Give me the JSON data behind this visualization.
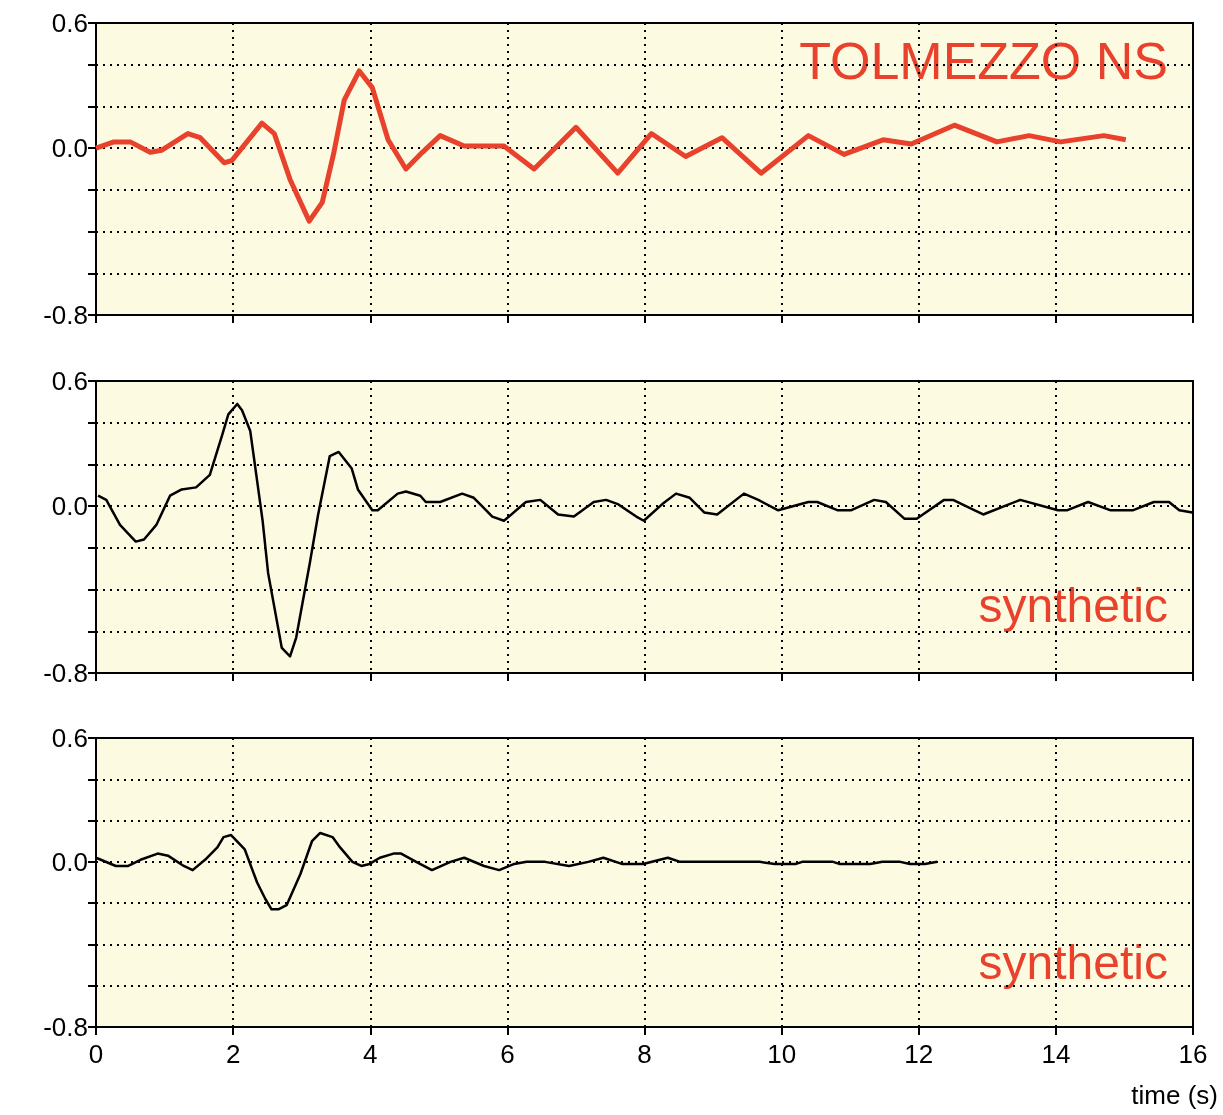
{
  "chart_data": [
    {
      "type": "line",
      "tick_labels": "y",
      "grid": true,
      "xlim": [
        0,
        16
      ],
      "xticks": [
        0,
        2,
        4,
        6,
        8,
        10,
        12,
        14,
        16
      ],
      "ylim": [
        -0.8,
        0.6
      ],
      "yticks": [
        0.6,
        {
          "value": 0.4,
          "label": null
        },
        {
          "value": 0.2,
          "label": null
        },
        {
          "value": 0,
          "label": "0.0"
        },
        {
          "value": -0.2,
          "label": null
        },
        {
          "value": -0.4,
          "label": null
        },
        {
          "value": -0.6,
          "label": null
        },
        -0.8
      ],
      "annotations": [
        "TOLMEZZO NS"
      ],
      "series": [
        {
          "color": "#e8412c",
          "x": [
            0,
            0.26,
            0.5,
            0.79,
            0.96,
            1.34,
            1.52,
            1.87,
            1.98,
            2.42,
            2.6,
            2.83,
            3.11,
            3.3,
            3.47,
            3.62,
            3.84,
            4.03,
            4.26,
            4.52,
            4.76,
            5.02,
            5.37,
            5.95,
            6.39,
            7.0,
            7.61,
            8.1,
            8.6,
            9.13,
            9.7,
            10.39,
            10.91,
            11.48,
            11.89,
            12.52,
            13.14,
            13.61,
            14.07,
            14.7,
            15.02
          ],
          "values": [
            0,
            0.03,
            0.03,
            -0.02,
            -0.01,
            0.07,
            0.05,
            -0.07,
            -0.06,
            0.12,
            0.07,
            -0.15,
            -0.35,
            -0.26,
            -0.02,
            0.23,
            0.37,
            0.29,
            0.04,
            -0.1,
            -0.02,
            0.06,
            0.01,
            0.01,
            -0.1,
            0.1,
            -0.12,
            0.07,
            -0.04,
            0.05,
            -0.12,
            0.06,
            -0.03,
            0.04,
            0.02,
            0.11,
            0.03,
            0.06,
            0.03,
            0.06,
            0.04
          ]
        }
      ]
    },
    {
      "type": "line",
      "tick_labels": "y",
      "grid": true,
      "xlim": [
        0,
        16
      ],
      "xticks": [
        0,
        2,
        4,
        6,
        8,
        10,
        12,
        14,
        16
      ],
      "ylim": [
        -0.8,
        0.6
      ],
      "yticks": [
        0.6,
        {
          "value": 0.4,
          "label": null
        },
        {
          "value": 0.2,
          "label": null
        },
        {
          "value": 0,
          "label": "0.0"
        },
        {
          "value": -0.2,
          "label": null
        },
        {
          "value": -0.4,
          "label": null
        },
        {
          "value": -0.6,
          "label": null
        },
        -0.8
      ],
      "annotations": [
        "synthetic"
      ],
      "series": [
        {
          "color": "#000000",
          "x": [
            0.03,
            0.15,
            0.35,
            0.58,
            0.7,
            0.88,
            1.08,
            1.25,
            1.46,
            1.66,
            1.84,
            1.93,
            2.06,
            2.13,
            2.25,
            2.43,
            2.51,
            2.71,
            2.83,
            2.92,
            3.12,
            3.24,
            3.41,
            3.54,
            3.73,
            3.82,
            4.03,
            4.11,
            4.4,
            4.52,
            4.73,
            4.81,
            5.02,
            5.34,
            5.51,
            5.78,
            5.95,
            6.27,
            6.48,
            6.74,
            6.97,
            7.26,
            7.44,
            7.61,
            7.88,
            7.99,
            8.26,
            8.46,
            8.66,
            8.87,
            9.06,
            9.45,
            9.66,
            9.95,
            10.39,
            10.52,
            10.82,
            11.01,
            11.35,
            11.52,
            11.79,
            11.97,
            12.37,
            12.5,
            12.94,
            13.48,
            14.03,
            14.16,
            14.47,
            14.8,
            15.12,
            15.43,
            15.65,
            15.8,
            15.99
          ],
          "values": [
            0.05,
            0.03,
            -0.09,
            -0.17,
            -0.16,
            -0.09,
            0.05,
            0.08,
            0.09,
            0.15,
            0.34,
            0.44,
            0.49,
            0.46,
            0.36,
            -0.07,
            -0.32,
            -0.68,
            -0.72,
            -0.63,
            -0.27,
            -0.04,
            0.24,
            0.26,
            0.18,
            0.08,
            -0.02,
            -0.02,
            0.06,
            0.07,
            0.05,
            0.02,
            0.02,
            0.06,
            0.04,
            -0.05,
            -0.07,
            0.02,
            0.03,
            -0.04,
            -0.05,
            0.02,
            0.03,
            0.01,
            -0.05,
            -0.07,
            0.01,
            0.06,
            0.04,
            -0.03,
            -0.04,
            0.06,
            0.03,
            -0.02,
            0.02,
            0.02,
            -0.02,
            -0.02,
            0.03,
            0.02,
            -0.06,
            -0.06,
            0.03,
            0.03,
            -0.04,
            0.03,
            -0.02,
            -0.02,
            0.02,
            -0.02,
            -0.02,
            0.02,
            0.02,
            -0.02,
            -0.03
          ]
        }
      ]
    },
    {
      "type": "line",
      "grid": true,
      "xlabel": "time (s)",
      "xlim": [
        0,
        16
      ],
      "xticks": [
        0,
        2,
        4,
        6,
        8,
        10,
        12,
        14,
        16
      ],
      "ylim": [
        -0.8,
        0.6
      ],
      "yticks": [
        0.6,
        {
          "value": 0.4,
          "label": null
        },
        {
          "value": 0.2,
          "label": null
        },
        {
          "value": 0,
          "label": "0.0"
        },
        {
          "value": -0.2,
          "label": null
        },
        {
          "value": -0.4,
          "label": null
        },
        {
          "value": -0.6,
          "label": null
        },
        -0.8
      ],
      "annotations": [
        "synthetic"
      ],
      "series": [
        {
          "color": "#000000",
          "x": [
            0,
            0.29,
            0.47,
            0.65,
            0.9,
            1.05,
            1.28,
            1.41,
            1.59,
            1.77,
            1.86,
            1.97,
            2.17,
            2.35,
            2.47,
            2.56,
            2.66,
            2.78,
            2.98,
            3.15,
            3.27,
            3.45,
            3.56,
            3.74,
            3.87,
            3.99,
            4.14,
            4.34,
            4.45,
            4.67,
            4.9,
            5.17,
            5.37,
            5.66,
            5.88,
            6.1,
            6.28,
            6.55,
            6.9,
            7.18,
            7.4,
            7.67,
            7.98,
            8.34,
            8.52,
            8.78,
            9.14,
            9.68,
            9.9,
            10.21,
            10.3,
            10.75,
            10.84,
            11.29,
            11.47,
            11.73,
            11.87,
            12.09,
            12.27
          ],
          "values": [
            0.02,
            -0.02,
            -0.02,
            0.01,
            0.04,
            0.03,
            -0.02,
            -0.04,
            0.01,
            0.07,
            0.12,
            0.13,
            0.06,
            -0.1,
            -0.18,
            -0.23,
            -0.23,
            -0.21,
            -0.06,
            0.1,
            0.14,
            0.12,
            0.07,
            0,
            -0.02,
            -0.01,
            0.02,
            0.04,
            0.04,
            0,
            -0.04,
            0,
            0.02,
            -0.02,
            -0.04,
            -0.01,
            0,
            0,
            -0.02,
            0,
            0.02,
            -0.01,
            -0.01,
            0.02,
            0,
            0,
            0,
            0,
            -0.01,
            -0.01,
            0,
            0,
            -0.01,
            -0.01,
            0,
            0,
            -0.01,
            -0.01,
            0
          ]
        }
      ]
    }
  ]
}
